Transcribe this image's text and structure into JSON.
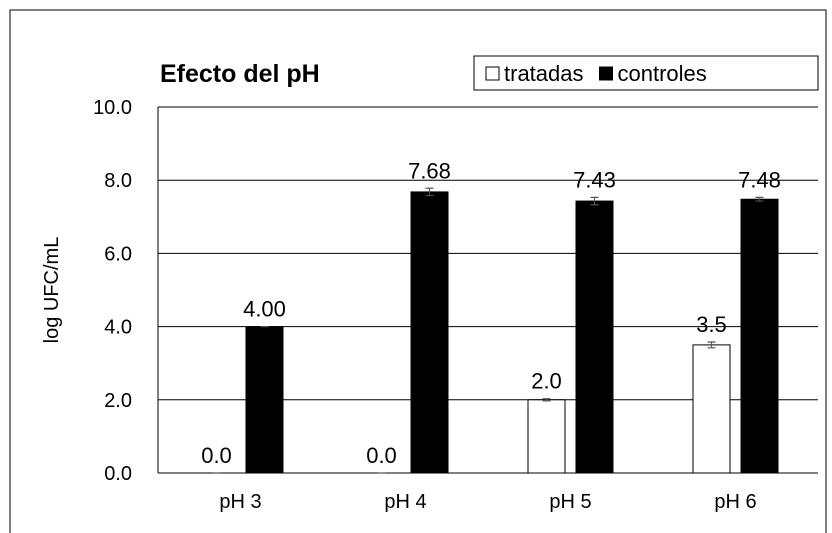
{
  "chart_data": {
    "type": "bar",
    "title": "Efecto del pH",
    "y_label": "log UFC/mL",
    "categories": [
      "pH 3",
      "pH 4",
      "pH 5",
      "pH 6"
    ],
    "series": [
      {
        "name": "tratadas",
        "color": "#ffffff",
        "values": [
          0,
          0,
          2,
          3.5
        ],
        "value_labels": [
          "0.0",
          "0.0",
          "2.0",
          "3.5"
        ],
        "errors": [
          0,
          0,
          0.03,
          0.08
        ]
      },
      {
        "name": "controles",
        "color": "#000000",
        "values": [
          4,
          7.68,
          7.43,
          7.48
        ],
        "value_labels": [
          "4.00",
          "7.68",
          "7.43",
          "7.48"
        ],
        "errors": [
          0,
          0.1,
          0.1,
          0.05
        ]
      }
    ],
    "ylim": [
      0,
      10
    ],
    "yticks": [
      {
        "value": 0,
        "label": "0.0"
      },
      {
        "value": 2,
        "label": "2.0"
      },
      {
        "value": 4,
        "label": "4.0"
      },
      {
        "value": 6,
        "label": "6.0"
      },
      {
        "value": 8,
        "label": "8.0"
      },
      {
        "value": 10,
        "label": "10.0"
      }
    ],
    "grid": true,
    "legend": "top-right"
  }
}
